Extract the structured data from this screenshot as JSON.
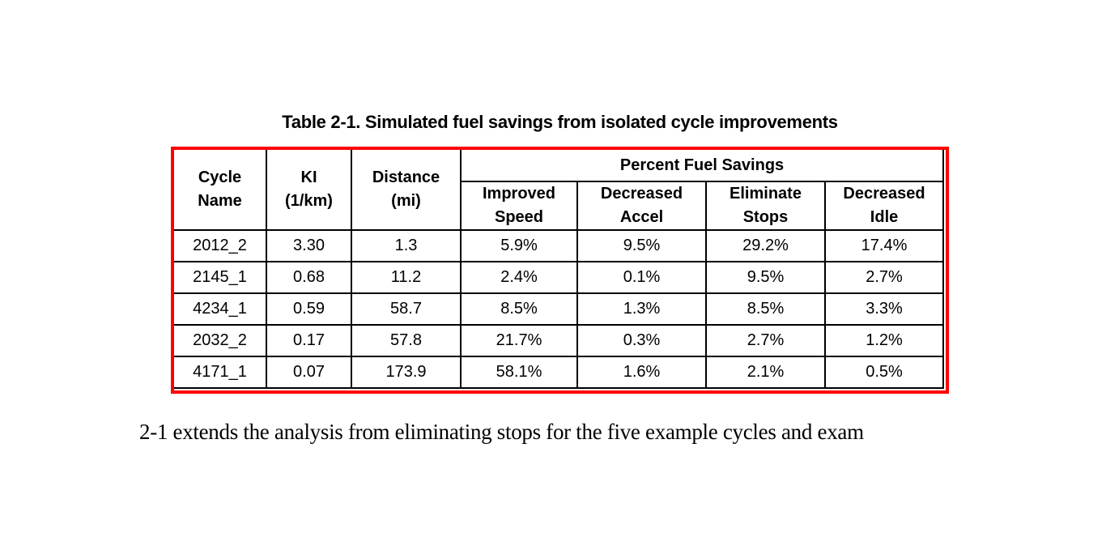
{
  "table": {
    "title": "Table 2-1. Simulated fuel savings from isolated cycle improvements",
    "highlight_border_color": "#ff0000",
    "grid_color": "#000000",
    "span_header": "Percent Fuel Savings",
    "columns": [
      {
        "label": "Cycle\nName"
      },
      {
        "label": "KI\n(1/km)"
      },
      {
        "label": "Distance\n(mi)"
      },
      {
        "label": "Improved\nSpeed"
      },
      {
        "label": "Decreased\nAccel"
      },
      {
        "label": "Eliminate\nStops"
      },
      {
        "label": "Decreased\nIdle"
      }
    ],
    "rows": [
      [
        "2012_2",
        "3.30",
        "1.3",
        "5.9%",
        "9.5%",
        "29.2%",
        "17.4%"
      ],
      [
        "2145_1",
        "0.68",
        "11.2",
        "2.4%",
        "0.1%",
        "9.5%",
        "2.7%"
      ],
      [
        "4234_1",
        "0.59",
        "58.7",
        "8.5%",
        "1.3%",
        "8.5%",
        "3.3%"
      ],
      [
        "2032_2",
        "0.17",
        "57.8",
        "21.7%",
        "0.3%",
        "2.7%",
        "1.2%"
      ],
      [
        "4171_1",
        "0.07",
        "173.9",
        "58.1%",
        "1.6%",
        "2.1%",
        "0.5%"
      ]
    ]
  },
  "paragraph": {
    "text": "2-1 extends the analysis from eliminating stops for the five example cycles and exam"
  }
}
